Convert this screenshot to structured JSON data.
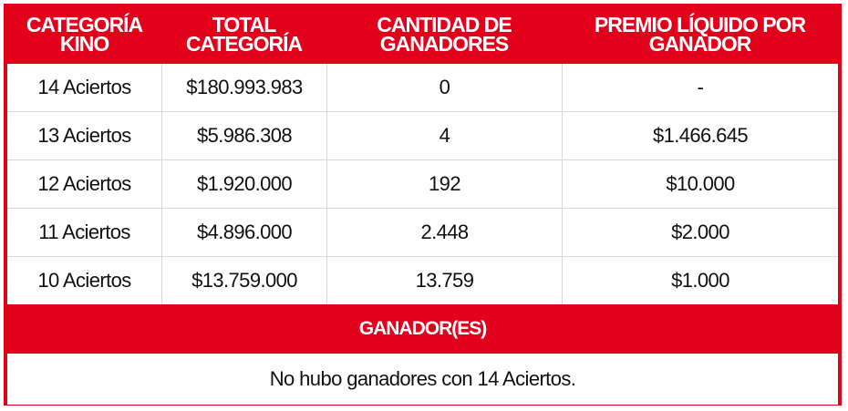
{
  "table": {
    "headers": [
      [
        "CATEGORÍA",
        "KINO"
      ],
      [
        "TOTAL",
        "CATEGORÍA"
      ],
      [
        "CANTIDAD DE",
        "GANADORES"
      ],
      [
        "PREMIO LÍQUIDO POR",
        "GANADOR"
      ]
    ],
    "rows": [
      [
        "14 Aciertos",
        "$180.993.983",
        "0",
        "-"
      ],
      [
        "13 Aciertos",
        "$5.986.308",
        "4",
        "$1.466.645"
      ],
      [
        "12 Aciertos",
        "$1.920.000",
        "192",
        "$10.000"
      ],
      [
        "11 Aciertos",
        "$4.896.000",
        "2.448",
        "$2.000"
      ],
      [
        "10 Aciertos",
        "$13.759.000",
        "13.759",
        "$1.000"
      ]
    ],
    "winners_title": "GANADOR(ES)",
    "winners_note": "No hubo ganadores con 14 Aciertos."
  },
  "colors": {
    "accent": "#e3001b",
    "grid_line": "#d9d9d9"
  }
}
